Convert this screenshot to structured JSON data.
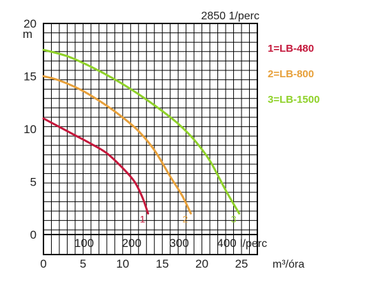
{
  "chart_data": {
    "type": "line",
    "title": "2850 1/perc",
    "ylabel": "m",
    "xlabel_top": "l/perc",
    "xlabel_bottom": "m³/óra",
    "ylim": [
      0,
      20
    ],
    "xlim_m3h": [
      0,
      27
    ],
    "grid": true,
    "legend_position": "right",
    "y_ticks": [
      "0",
      "5",
      "10",
      "15",
      "20"
    ],
    "x_ticks_top": [
      "100",
      "200",
      "300",
      "400"
    ],
    "x_ticks_top_values_lpm": [
      100,
      200,
      300,
      400
    ],
    "x_ticks_bottom": [
      "0",
      "5",
      "10",
      "15",
      "20",
      "25"
    ],
    "x_ticks_bottom_values": [
      0,
      5,
      10,
      15,
      20,
      25
    ],
    "series": [
      {
        "name": "1=LB-480",
        "end_label": "1",
        "color": "#c4183c",
        "points": [
          [
            0,
            11
          ],
          [
            2,
            10.2
          ],
          [
            4,
            9.4
          ],
          [
            6,
            8.6
          ],
          [
            8,
            7.7
          ],
          [
            10,
            6.3
          ],
          [
            11.5,
            5
          ],
          [
            12.5,
            3.5
          ],
          [
            13.2,
            2.0
          ]
        ]
      },
      {
        "name": "2=LB-800",
        "end_label": "2",
        "color": "#e7a03a",
        "points": [
          [
            0,
            15
          ],
          [
            2,
            14.6
          ],
          [
            5,
            13.6
          ],
          [
            8,
            12.2
          ],
          [
            10,
            11.1
          ],
          [
            12,
            9.8
          ],
          [
            14,
            8.0
          ],
          [
            16,
            5.5
          ],
          [
            17.5,
            3.7
          ],
          [
            18.6,
            2.0
          ]
        ]
      },
      {
        "name": "3=LB-1500",
        "end_label": "3",
        "color": "#8fd12a",
        "points": [
          [
            0,
            17.5
          ],
          [
            3,
            16.9
          ],
          [
            6,
            15.9
          ],
          [
            9,
            14.7
          ],
          [
            12,
            13.3
          ],
          [
            15,
            11.7
          ],
          [
            17,
            10.5
          ],
          [
            19,
            9.0
          ],
          [
            21,
            7.0
          ],
          [
            23,
            4.2
          ],
          [
            24.7,
            2.0
          ]
        ]
      }
    ]
  }
}
